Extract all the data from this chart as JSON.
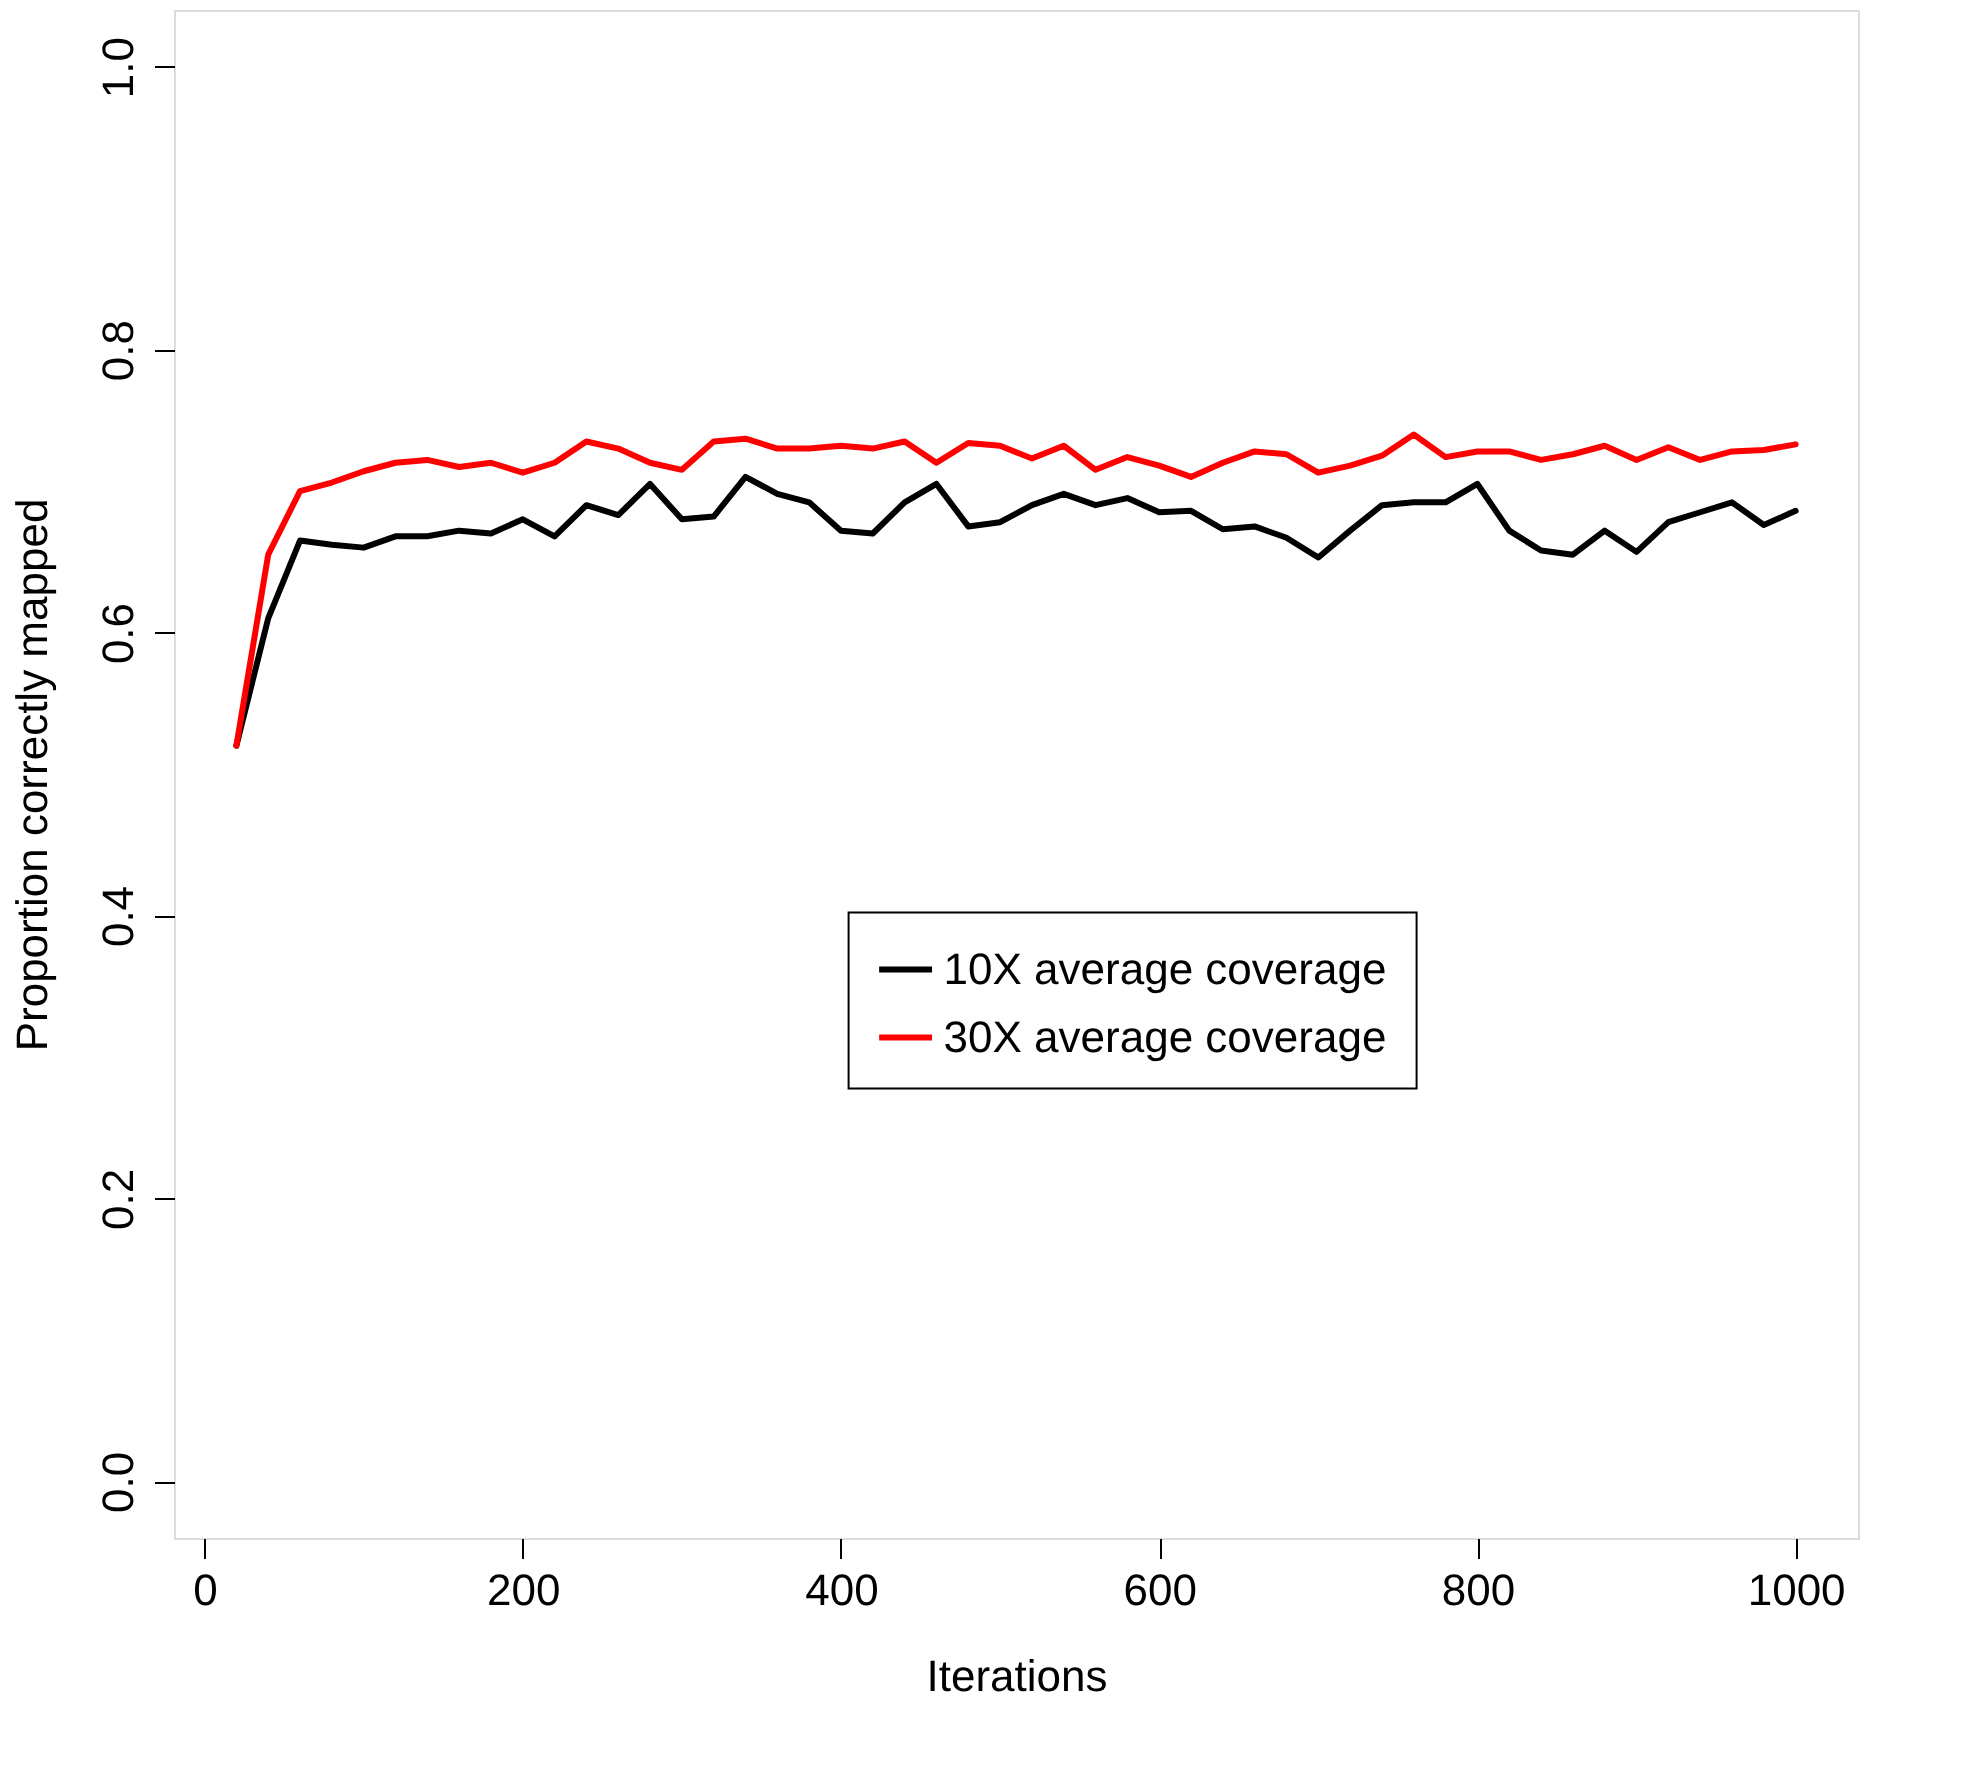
{
  "chart_data": {
    "type": "line",
    "xlabel": "Iterations",
    "ylabel": "Proportion correctly mapped",
    "x": [
      20,
      40,
      60,
      80,
      100,
      120,
      140,
      160,
      180,
      200,
      220,
      240,
      260,
      280,
      300,
      320,
      340,
      360,
      380,
      400,
      420,
      440,
      460,
      480,
      500,
      520,
      540,
      560,
      580,
      600,
      620,
      640,
      660,
      680,
      700,
      720,
      740,
      760,
      780,
      800,
      820,
      840,
      860,
      880,
      900,
      920,
      940,
      960,
      980,
      1000
    ],
    "series": [
      {
        "name": "10X average coverage",
        "color": "#000000",
        "values": [
          0.52,
          0.61,
          0.665,
          0.662,
          0.66,
          0.668,
          0.668,
          0.672,
          0.67,
          0.68,
          0.668,
          0.69,
          0.683,
          0.705,
          0.68,
          0.682,
          0.71,
          0.698,
          0.692,
          0.672,
          0.67,
          0.692,
          0.705,
          0.675,
          0.678,
          0.69,
          0.698,
          0.69,
          0.695,
          0.685,
          0.686,
          0.673,
          0.675,
          0.667,
          0.653,
          0.672,
          0.69,
          0.692,
          0.692,
          0.705,
          0.672,
          0.658,
          0.655,
          0.672,
          0.657,
          0.678,
          0.685,
          0.692,
          0.676,
          0.686
        ]
      },
      {
        "name": "30X average coverage",
        "color": "#ff0000",
        "values": [
          0.52,
          0.655,
          0.7,
          0.706,
          0.714,
          0.72,
          0.722,
          0.717,
          0.72,
          0.713,
          0.72,
          0.735,
          0.73,
          0.72,
          0.715,
          0.735,
          0.737,
          0.73,
          0.73,
          0.732,
          0.73,
          0.735,
          0.72,
          0.734,
          0.732,
          0.723,
          0.732,
          0.715,
          0.724,
          0.718,
          0.71,
          0.72,
          0.728,
          0.726,
          0.713,
          0.718,
          0.725,
          0.74,
          0.724,
          0.728,
          0.728,
          0.722,
          0.726,
          0.732,
          0.722,
          0.731,
          0.722,
          0.728,
          0.729,
          0.733
        ]
      }
    ],
    "xlim": [
      -19.2,
      1039.2
    ],
    "xticks": [
      0,
      200,
      400,
      600,
      800,
      1000
    ],
    "ylim": [
      -0.04,
      1.04
    ],
    "yticks": [
      {
        "value": 0,
        "label": "0.0"
      },
      0.2,
      0.4,
      0.6,
      0.8,
      {
        "value": 1,
        "label": "1.0"
      }
    ],
    "grid": false,
    "legend": "right",
    "marker": "none",
    "line_style": "solid"
  }
}
